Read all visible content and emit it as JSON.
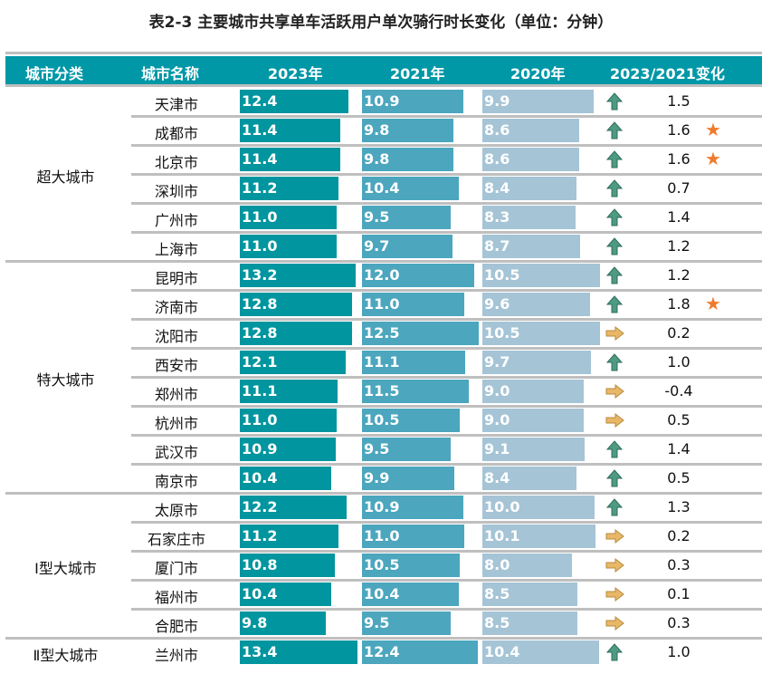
{
  "title": "表2-3 主要城市共享单车活跃用户单次骑行时长变化（单位：分钟）",
  "headers": [
    "城市分类",
    "城市名称",
    "2023年",
    "2021年",
    "2020年",
    "2023/2021变化"
  ],
  "colors": {
    "header": "#0097a7",
    "bar2023": "#00959f",
    "bar2021": "#4ba6be",
    "bar2020": "#a5c4d6",
    "up": "#4e9a82",
    "flat": "#e0b060",
    "star": "#f07b2c"
  },
  "groups": [
    {
      "name": "超大城市",
      "rows": [
        {
          "city": "天津市",
          "v2023": "12.4",
          "v2021": "10.9",
          "v2020": "9.9",
          "trend": "up",
          "change": "1.5",
          "star": false
        },
        {
          "city": "成都市",
          "v2023": "11.4",
          "v2021": "9.8",
          "v2020": "8.6",
          "trend": "up",
          "change": "1.6",
          "star": true
        },
        {
          "city": "北京市",
          "v2023": "11.4",
          "v2021": "9.8",
          "v2020": "8.6",
          "trend": "up",
          "change": "1.6",
          "star": true
        },
        {
          "city": "深圳市",
          "v2023": "11.2",
          "v2021": "10.4",
          "v2020": "8.4",
          "trend": "up",
          "change": "0.7",
          "star": false
        },
        {
          "city": "广州市",
          "v2023": "11.0",
          "v2021": "9.5",
          "v2020": "8.3",
          "trend": "up",
          "change": "1.4",
          "star": false
        },
        {
          "city": "上海市",
          "v2023": "11.0",
          "v2021": "9.7",
          "v2020": "8.7",
          "trend": "up",
          "change": "1.2",
          "star": false
        }
      ]
    },
    {
      "name": "特大城市",
      "rows": [
        {
          "city": "昆明市",
          "v2023": "13.2",
          "v2021": "12.0",
          "v2020": "10.5",
          "trend": "up",
          "change": "1.2",
          "star": false
        },
        {
          "city": "济南市",
          "v2023": "12.8",
          "v2021": "11.0",
          "v2020": "9.6",
          "trend": "up",
          "change": "1.8",
          "star": true
        },
        {
          "city": "沈阳市",
          "v2023": "12.8",
          "v2021": "12.5",
          "v2020": "10.5",
          "trend": "flat",
          "change": "0.2",
          "star": false
        },
        {
          "city": "西安市",
          "v2023": "12.1",
          "v2021": "11.1",
          "v2020": "9.7",
          "trend": "up",
          "change": "1.0",
          "star": false
        },
        {
          "city": "郑州市",
          "v2023": "11.1",
          "v2021": "11.5",
          "v2020": "9.0",
          "trend": "flat",
          "change": "-0.4",
          "star": false
        },
        {
          "city": "杭州市",
          "v2023": "11.0",
          "v2021": "10.5",
          "v2020": "9.0",
          "trend": "flat",
          "change": "0.5",
          "star": false
        },
        {
          "city": "武汉市",
          "v2023": "10.9",
          "v2021": "9.5",
          "v2020": "9.1",
          "trend": "up",
          "change": "1.4",
          "star": false
        },
        {
          "city": "南京市",
          "v2023": "10.4",
          "v2021": "9.9",
          "v2020": "8.4",
          "trend": "up",
          "change": "0.5",
          "star": false
        }
      ]
    },
    {
      "name": "Ⅰ型大城市",
      "rows": [
        {
          "city": "太原市",
          "v2023": "12.2",
          "v2021": "10.9",
          "v2020": "10.0",
          "trend": "up",
          "change": "1.3",
          "star": false
        },
        {
          "city": "石家庄市",
          "v2023": "11.2",
          "v2021": "11.0",
          "v2020": "10.1",
          "trend": "flat",
          "change": "0.2",
          "star": false
        },
        {
          "city": "厦门市",
          "v2023": "10.8",
          "v2021": "10.5",
          "v2020": "8.0",
          "trend": "flat",
          "change": "0.3",
          "star": false
        },
        {
          "city": "福州市",
          "v2023": "10.4",
          "v2021": "10.4",
          "v2020": "8.5",
          "trend": "flat",
          "change": "0.1",
          "star": false
        },
        {
          "city": "合肥市",
          "v2023": "9.8",
          "v2021": "9.5",
          "v2020": "8.5",
          "trend": "flat",
          "change": "0.3",
          "star": false
        }
      ]
    },
    {
      "name": "Ⅱ型大城市",
      "rows": [
        {
          "city": "兰州市",
          "v2023": "13.4",
          "v2021": "12.4",
          "v2020": "10.4",
          "trend": "up",
          "change": "1.0",
          "star": false
        }
      ]
    }
  ]
}
